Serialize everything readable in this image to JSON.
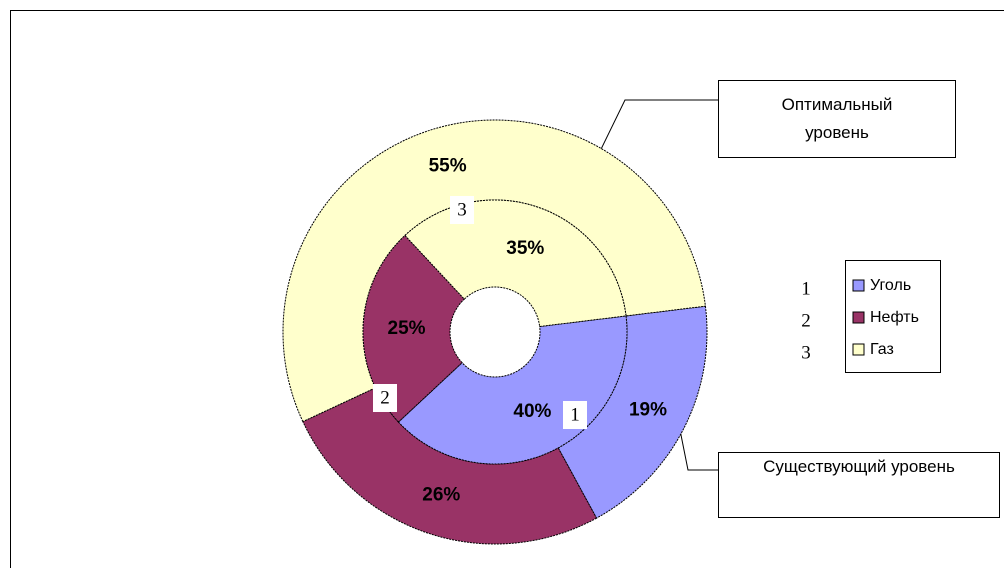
{
  "chart_data": {
    "type": "doughnut",
    "categories": [
      "Уголь",
      "Нефть",
      "Газ"
    ],
    "category_numbers": [
      "1",
      "2",
      "3"
    ],
    "series": [
      {
        "name": "Существующий уровень",
        "colors": [
          "#9999ff",
          "#993366",
          "#ffffcc"
        ],
        "values": [
          19,
          26,
          55
        ],
        "value_labels": [
          "19%",
          "26%",
          "55%"
        ]
      },
      {
        "name": "Оптимальный уровень",
        "colors": [
          "#9999ff",
          "#993366",
          "#ffffcc"
        ],
        "values": [
          40,
          25,
          35
        ],
        "value_labels": [
          "40%",
          "25%",
          "35%"
        ]
      }
    ],
    "legend": "right"
  }
}
